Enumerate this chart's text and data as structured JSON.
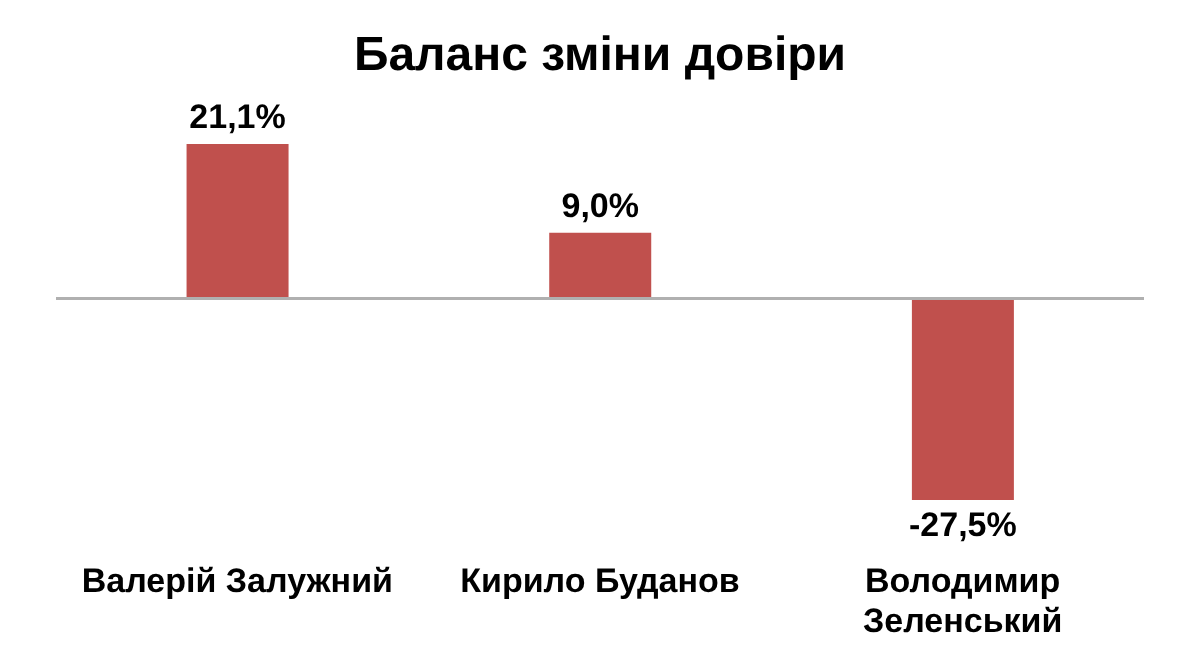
{
  "chart_data": {
    "type": "bar",
    "title": "Баланс зміни довіри",
    "categories": [
      "Валерій Залужний",
      "Кирило Буданов",
      "Володимир Зеленський"
    ],
    "values": [
      21.1,
      9.0,
      -27.5
    ],
    "value_labels": [
      "21,1%",
      "9,0%",
      "-27,5%"
    ],
    "color": "#c0504d"
  }
}
